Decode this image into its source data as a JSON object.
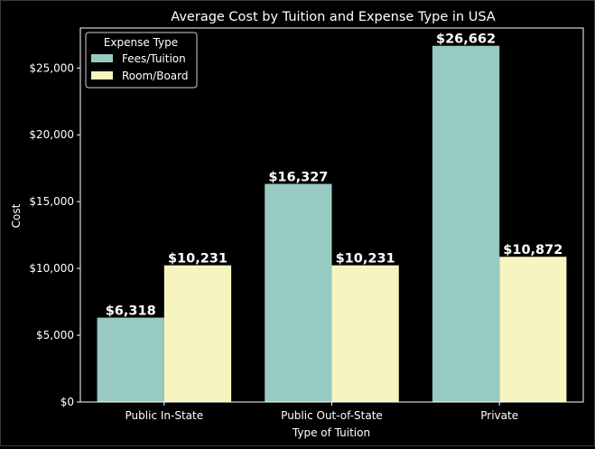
{
  "chart_data": {
    "type": "bar",
    "title": "Average Cost by Tuition and Expense Type in USA",
    "xlabel": "Type of Tuition",
    "ylabel": "Cost",
    "categories": [
      "Public In-State",
      "Public Out-of-State",
      "Private"
    ],
    "series": [
      {
        "name": "Fees/Tuition",
        "color": "#97cbc2",
        "values": [
          6318,
          16327,
          26662
        ],
        "labels": [
          "$6,318",
          "$16,327",
          "$26,662"
        ]
      },
      {
        "name": "Room/Board",
        "color": "#f6f5c0",
        "values": [
          10231,
          10231,
          10872
        ],
        "labels": [
          "$10,231",
          "$10,231",
          "$10,872"
        ]
      }
    ],
    "ylim": [
      0,
      27995
    ],
    "yticks": [
      0,
      5000,
      10000,
      15000,
      20000,
      25000
    ],
    "ytick_labels": [
      "$0",
      "$5,000",
      "$10,000",
      "$15,000",
      "$20,000",
      "$25,000"
    ],
    "legend": {
      "title": "Expense Type",
      "position": "upper-left"
    },
    "grid": false,
    "colors": {
      "background": "#000000",
      "axes": "#ffffff",
      "text": "#ffffff"
    }
  }
}
